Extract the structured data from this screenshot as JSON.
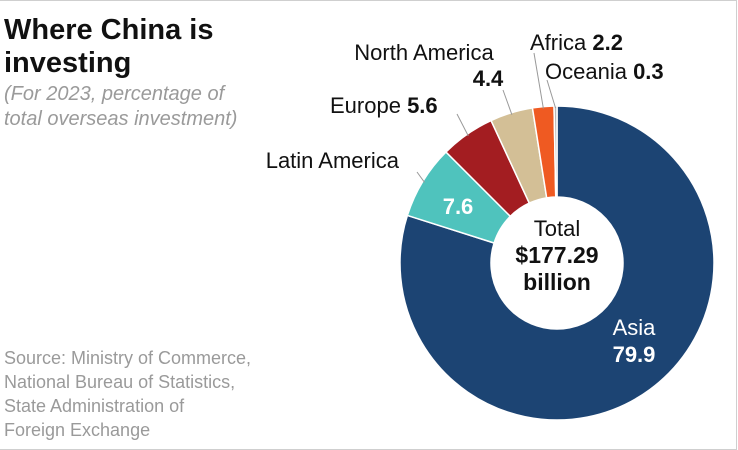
{
  "title_lines": [
    "Where China is",
    "investing"
  ],
  "subtitle_lines": [
    "(For 2023, percentage of",
    "total overseas investment)"
  ],
  "source_lines": [
    "Source: Ministry of Commerce,",
    "National Bureau of Statistics,",
    "State Administration of",
    "Foreign Exchange"
  ],
  "center_label": {
    "line1": "Total",
    "line2": "$177.29",
    "line3": "billion"
  },
  "chart_data": {
    "type": "pie",
    "donut": true,
    "title": "Where China is investing",
    "subtitle": "(For 2023, percentage of total overseas investment)",
    "unit": "percent",
    "categories": [
      "Asia",
      "Latin America",
      "Europe",
      "North America",
      "Africa",
      "Oceania"
    ],
    "values": [
      79.9,
      7.6,
      5.6,
      4.4,
      2.2,
      0.3
    ],
    "colors": [
      "#1c4473",
      "#4fc3bd",
      "#a31d21",
      "#d3bf96",
      "#ef5a22",
      "#b8b8b8"
    ],
    "start": "12 o'clock, clockwise",
    "total_label": "Total $177.29 billion"
  }
}
